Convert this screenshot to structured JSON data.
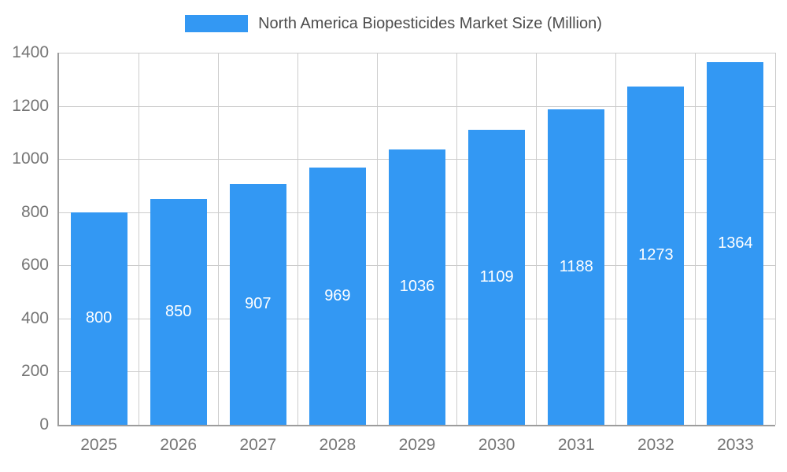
{
  "chart_data": {
    "type": "bar",
    "title": "North America Biopesticides Market Size (Million)",
    "categories": [
      "2025",
      "2026",
      "2027",
      "2028",
      "2029",
      "2030",
      "2031",
      "2032",
      "2033"
    ],
    "values": [
      800,
      850,
      907,
      969,
      1036,
      1109,
      1188,
      1273,
      1364
    ],
    "xlabel": "",
    "ylabel": "",
    "ylim": [
      0,
      1400
    ],
    "yticks": [
      0,
      200,
      400,
      600,
      800,
      1000,
      1200,
      1400
    ],
    "grid": true,
    "legend_position": "top",
    "bar_labels_visible": true
  },
  "colors": {
    "bar": "#3398f3",
    "bar_label": "#ffffff",
    "grid": "#cccccc",
    "axis": "#9c9c9c",
    "tick_label": "#757575",
    "title": "#4d4d4d",
    "background": "#ffffff"
  }
}
